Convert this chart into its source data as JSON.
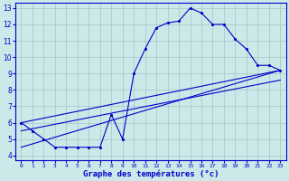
{
  "bg_color": "#cce8e8",
  "grid_color": "#aacccc",
  "line_color": "#0000cc",
  "title": "Graphe des températures (°c)",
  "xlim": [
    -0.5,
    23.5
  ],
  "ylim": [
    3.7,
    13.3
  ],
  "yticks": [
    4,
    5,
    6,
    7,
    8,
    9,
    10,
    11,
    12,
    13
  ],
  "xticks": [
    0,
    1,
    2,
    3,
    4,
    5,
    6,
    7,
    8,
    9,
    10,
    11,
    12,
    13,
    14,
    15,
    16,
    17,
    18,
    19,
    20,
    21,
    22,
    23
  ],
  "curve1_x": [
    0,
    1,
    2,
    3,
    4,
    5,
    6,
    7,
    8,
    9,
    10,
    11,
    12,
    13,
    14,
    15,
    16,
    17,
    18,
    19,
    20,
    21,
    22,
    23
  ],
  "curve1_y": [
    6.0,
    5.5,
    5.0,
    4.5,
    4.5,
    4.5,
    4.5,
    4.5,
    6.5,
    5.0,
    9.0,
    10.5,
    11.8,
    12.1,
    12.2,
    13.0,
    12.7,
    12.0,
    12.0,
    11.1,
    10.5,
    9.5,
    9.5,
    9.2
  ],
  "curve2_x": [
    0,
    23
  ],
  "curve2_y": [
    6.0,
    9.2
  ],
  "curve3_x": [
    0,
    23
  ],
  "curve3_y": [
    4.5,
    9.2
  ],
  "curve4_x": [
    0,
    23
  ],
  "curve4_y": [
    5.5,
    8.6
  ]
}
